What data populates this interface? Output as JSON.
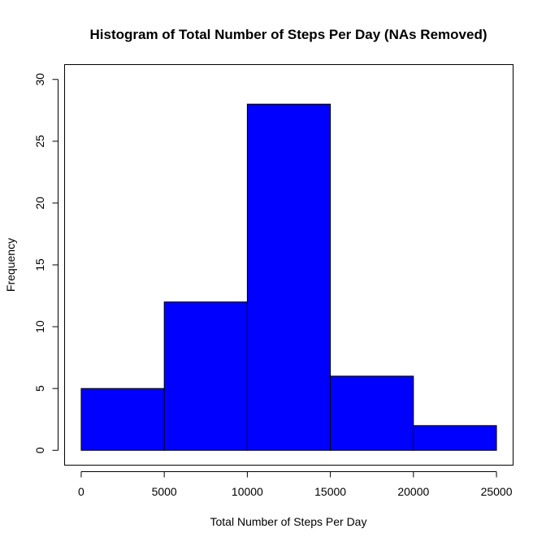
{
  "chart_data": {
    "type": "bar",
    "title": "Histogram of Total Number of Steps Per Day (NAs Removed)",
    "xlabel": "Total Number of Steps Per Day",
    "ylabel": "Frequency",
    "bins": [
      {
        "from": 0,
        "to": 5000,
        "count": 5
      },
      {
        "from": 5000,
        "to": 10000,
        "count": 12
      },
      {
        "from": 10000,
        "to": 15000,
        "count": 28
      },
      {
        "from": 15000,
        "to": 20000,
        "count": 6
      },
      {
        "from": 20000,
        "to": 25000,
        "count": 2
      }
    ],
    "xticks": [
      0,
      5000,
      10000,
      15000,
      20000,
      25000
    ],
    "yticks": [
      0,
      5,
      10,
      15,
      20,
      25,
      30
    ],
    "xlim": [
      -1000,
      26000
    ],
    "ylim": [
      -1.2,
      31.2
    ],
    "bar_color": "#0000ff",
    "grid": false,
    "legend": "none"
  }
}
